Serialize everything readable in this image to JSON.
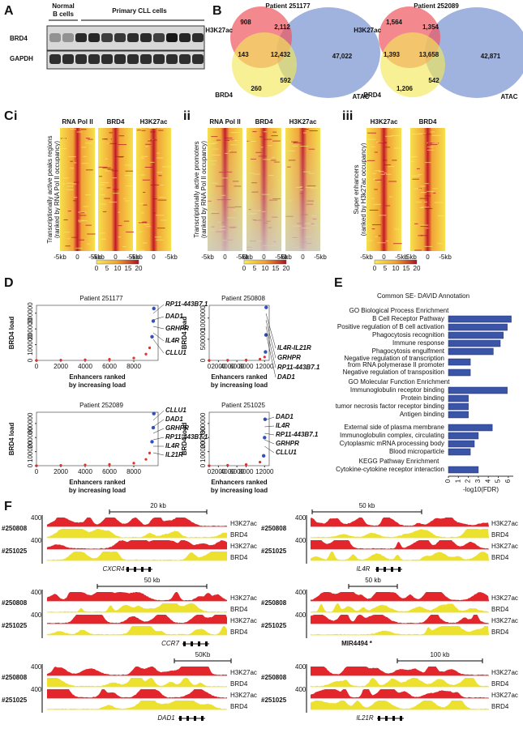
{
  "panel_a": {
    "label": "A",
    "normal_lines": [
      "Normal",
      "B cells"
    ],
    "primary": "Primary CLL cells",
    "rows": [
      "BRD4",
      "GAPDH"
    ]
  },
  "panel_b": {
    "label": "B",
    "sets": [
      "H3K27ac",
      "BRD4",
      "ATAC"
    ],
    "venns": [
      {
        "title": "Patient 251177",
        "counts": [
          "908",
          "2,112",
          "143",
          "12,432",
          "47,022",
          "260",
          "592"
        ]
      },
      {
        "title": "Patient 252089",
        "counts": [
          "1,564",
          "1,354",
          "1,393",
          "13,658",
          "42,871",
          "1,206",
          "542"
        ]
      }
    ]
  },
  "panel_c": {
    "label": "C",
    "colorbar_ticks": [
      "0",
      "5",
      "10",
      "15",
      "20"
    ],
    "xticks": [
      "-5kb",
      "0",
      "-5kb"
    ],
    "subpanels": [
      {
        "label": "i",
        "columns": [
          "RNA Pol II",
          "BRD4",
          "H3K27ac"
        ],
        "ylabel": [
          "Transcriptionally active peaks regions",
          "(ranked by RNA Pol II occupancy)"
        ]
      },
      {
        "label": "ii",
        "columns": [
          "RNA Pol II",
          "BRD4",
          "H3K27ac"
        ],
        "ylabel": [
          "Transcriptionally active promoters",
          "(ranked by RNA Pol II occupancy)"
        ]
      },
      {
        "label": "iii",
        "columns": [
          "H3K27ac",
          "BRD4"
        ],
        "ylabel": [
          "Super enhancers",
          "(ranked by H3k27ac occupancy)"
        ]
      }
    ]
  },
  "panel_d": {
    "label": "D",
    "ylabel": "BRD4 load",
    "xlabel": [
      "Enhancers ranked",
      "by increasing load"
    ],
    "color": "#e0302c",
    "highlight": "#3450c0",
    "plots": [
      {
        "title": "Patient 251177",
        "genes": [
          "RP11-443B7.1",
          "DAD1",
          "GRHPR",
          "IL4R",
          "CLLU1"
        ],
        "xlim": [
          0,
          10000
        ],
        "ylim": [
          0,
          350000
        ],
        "xticks": [
          0,
          2000,
          4000,
          6000,
          8000
        ],
        "yticks": [
          0,
          100000,
          200000,
          300000
        ],
        "x": [
          0,
          2000,
          4000,
          6000,
          8000,
          9000,
          9300,
          9500,
          9600,
          9650
        ],
        "values": [
          0,
          2000,
          4000,
          7000,
          15000,
          40000,
          80000,
          150000,
          250000,
          330000
        ]
      },
      {
        "title": "Patient 250808",
        "genes": [
          "IL4R-IL21R",
          "GRHPR",
          "RP11-443B7.1",
          "DAD1"
        ],
        "xlim": [
          0,
          13000
        ],
        "ylim": [
          0,
          1300000
        ],
        "xticks": [
          0,
          2000,
          4000,
          6000,
          8000,
          12000
        ],
        "yticks": [
          0,
          500000,
          1000000
        ],
        "x": [
          0,
          4000,
          8000,
          11000,
          12000,
          12200,
          12300,
          12350
        ],
        "values": [
          0,
          5000,
          10000,
          30000,
          80000,
          200000,
          600000,
          1250000
        ]
      },
      {
        "title": "Patient 252089",
        "genes": [
          "CLLU1",
          "DAD1",
          "GRHPR",
          "RP11-443B7.1",
          "IL4R",
          "IL21R"
        ],
        "xlim": [
          0,
          10000
        ],
        "ylim": [
          0,
          380000
        ],
        "xticks": [
          0,
          2000,
          4000,
          6000,
          8000
        ],
        "yticks": [
          0,
          100000,
          200000,
          300000
        ],
        "x": [
          0,
          2000,
          4000,
          6000,
          8000,
          9000,
          9300,
          9500,
          9600,
          9650
        ],
        "values": [
          0,
          2000,
          5000,
          9000,
          18000,
          45000,
          90000,
          170000,
          270000,
          370000
        ]
      },
      {
        "title": "Patient 251025",
        "genes": [
          "DAD1",
          "IL4R",
          "RP11-443B7.1",
          "GRHPR",
          "CLLU1"
        ],
        "xlim": [
          0,
          13000
        ],
        "ylim": [
          0,
          380000
        ],
        "xticks": [
          0,
          2000,
          4000,
          6000,
          8000,
          12000
        ],
        "yticks": [
          0,
          100000,
          200000,
          300000
        ],
        "x": [
          0,
          4000,
          8000,
          11000,
          11800,
          12000,
          12100
        ],
        "values": [
          0,
          3000,
          8000,
          25000,
          70000,
          200000,
          330000
        ]
      }
    ]
  },
  "panel_e": {
    "label": "E",
    "type": "bar",
    "title": "Common SE- DAVID Annotation",
    "color": "#3a55a8",
    "xlim": [
      0,
      6.5
    ],
    "xticks": [
      0,
      1,
      2,
      3,
      4,
      5,
      6
    ],
    "xlabel": "-log10(FDR)",
    "groups": [
      {
        "name": "GO Biological Process Enrichment",
        "categories": [
          "B Cell Receptor Pathway",
          "Positive regulation of B cell activation",
          "Phagocytosis recognition",
          "Immune response",
          "Phagocytosis engulfment",
          [
            "Negative regulation of transcription",
            "from RNA polymerase II promoter"
          ],
          "Negative regulation of transposition"
        ],
        "values": [
          6.3,
          5.9,
          5.5,
          5.2,
          4.5,
          2.2,
          2.2
        ]
      },
      {
        "name": "GO Molecular Function Enrichment",
        "categories": [
          "Immunoglobulin receptor binding",
          "Protein binding",
          "tumor necrosis factor receptor binding",
          "Antigen binding"
        ],
        "values": [
          5.9,
          2.0,
          2.0,
          2.0
        ]
      },
      {
        "categories": [
          "External side of plasma membrane",
          "Immunoglobulin complex, circulating",
          "Cytoplasmic mRNA processing body",
          "Blood microparticle"
        ],
        "values": [
          4.4,
          3.0,
          2.6,
          2.2
        ]
      },
      {
        "name": "KEGG Pathway Enrichment",
        "categories": [
          "Cytokine-cytokine receptor interaction"
        ],
        "values": [
          3.0
        ]
      }
    ]
  },
  "panel_f": {
    "label": "F",
    "samples": [
      "#250808",
      "#251025"
    ],
    "tracks": [
      "H3K27ac",
      "BRD4"
    ],
    "ymax": "400",
    "blocks": [
      {
        "scale": "20 kb",
        "gene": "CXCR4"
      },
      {
        "scale": "50 kb",
        "gene": "CCR7"
      },
      {
        "scale": "50Kb",
        "gene": "DAD1"
      },
      {
        "scale": "50 kb",
        "gene": "IL4R"
      },
      {
        "scale": "50 kb",
        "gene": "MIR4494 *"
      },
      {
        "scale": "100 kb",
        "gene": "IL21R"
      }
    ]
  }
}
